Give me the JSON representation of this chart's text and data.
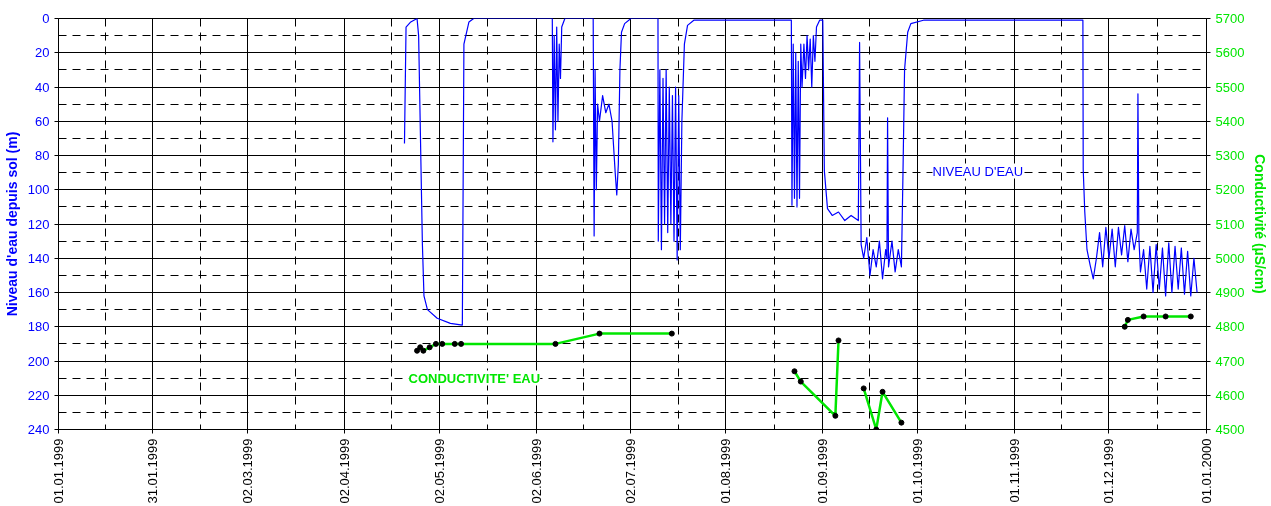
{
  "chart_data": {
    "type": "line",
    "xlabel": null,
    "ylabel": "Niveau d'eau depuis sol (m)",
    "y2label": "Conductivité (µS/cm)",
    "xlim": [
      "1999-01-01",
      "2000-01-01"
    ],
    "xticks": [
      {
        "value": "1999-01-01",
        "label": "01.01.1999"
      },
      {
        "value": "1999-01-31",
        "label": "31.01.1999"
      },
      {
        "value": "1999-03-02",
        "label": "02.03.1999"
      },
      {
        "value": "1999-04-02",
        "label": "02.04.1999"
      },
      {
        "value": "1999-05-02",
        "label": "02.05.1999"
      },
      {
        "value": "1999-06-02",
        "label": "02.06.1999"
      },
      {
        "value": "1999-07-02",
        "label": "02.07.1999"
      },
      {
        "value": "1999-08-01",
        "label": "01.08.1999"
      },
      {
        "value": "1999-09-01",
        "label": "01.09.1999"
      },
      {
        "value": "1999-10-01",
        "label": "01.10.1999"
      },
      {
        "value": "1999-11-01",
        "label": "01.11.1999"
      },
      {
        "value": "1999-12-01",
        "label": "01.12.1999"
      },
      {
        "value": "2000-01-01",
        "label": "01.01.2000"
      }
    ],
    "ylim": [
      240,
      0
    ],
    "yticks": [
      0,
      20,
      40,
      60,
      80,
      100,
      120,
      140,
      160,
      180,
      200,
      220,
      240
    ],
    "y2lim": [
      4500,
      5700
    ],
    "y2ticks": [
      4500,
      4600,
      4700,
      4800,
      4900,
      5000,
      5100,
      5200,
      5300,
      5400,
      5500,
      5600,
      5700
    ],
    "grid": true,
    "series": [
      {
        "name": "NIVEAU D'EAU",
        "color": "#0000ff",
        "marker": "none",
        "x": [
          "1999-04-21",
          "1999-04-21T12:00",
          "1999-04-23",
          "1999-04-25",
          "1999-04-25T12:00",
          "1999-04-26T16:48",
          "1999-04-27T04:48",
          "1999-04-28T07:12",
          "1999-05-01T09:36",
          "1999-05-05T14:24",
          "1999-05-09T09:36",
          "1999-05-09T21:36",
          "1999-05-11T12:00",
          "1999-05-13",
          "1999-06-07",
          "1999-06-07T04:48",
          "1999-06-07T14:24",
          "1999-06-08",
          "1999-06-08T09:36",
          "1999-06-08T19:12",
          "1999-06-09T04:48",
          "1999-06-09T14:24",
          "1999-06-10",
          "1999-06-11",
          "1999-06-20",
          "1999-06-20T07:12",
          "1999-06-20T14:24",
          "1999-06-21",
          "1999-06-21T09:36",
          "1999-06-22",
          "1999-06-23",
          "1999-06-24",
          "1999-06-25",
          "1999-06-26",
          "1999-06-26T12:00",
          "1999-06-27",
          "1999-06-27T12:00",
          "1999-06-28",
          "1999-06-28T12:00",
          "1999-06-29",
          "1999-06-30",
          "1999-07-02",
          "1999-07-10T14:24",
          "1999-07-10T16:48",
          "1999-07-11T04:48",
          "1999-07-11T16:48",
          "1999-07-12T04:48",
          "1999-07-12T16:48",
          "1999-07-13T04:48",
          "1999-07-13T16:48",
          "1999-07-14T04:48",
          "1999-07-14T16:48",
          "1999-07-15T04:48",
          "1999-07-15T16:48",
          "1999-07-16T04:48",
          "1999-07-16T16:48",
          "1999-07-17T04:48",
          "1999-07-17T16:48",
          "1999-07-18T04:48",
          "1999-07-19",
          "1999-07-20",
          "1999-07-22",
          "1999-07-25",
          "1999-08-22",
          "1999-08-22T04:48",
          "1999-08-22T14:24",
          "1999-08-23",
          "1999-08-23T09:36",
          "1999-08-23T19:12",
          "1999-08-24T04:48",
          "1999-08-24T14:24",
          "1999-08-25",
          "1999-08-25T09:36",
          "1999-08-26",
          "1999-08-26T12:00",
          "1999-08-27",
          "1999-08-27T12:00",
          "1999-08-28",
          "1999-08-28T12:00",
          "1999-08-29",
          "1999-08-29T12:00",
          "1999-08-30",
          "1999-08-31",
          "1999-09-01",
          "1999-09-01T12:00",
          "1999-09-02T12:00",
          "1999-09-04",
          "1999-09-06",
          "1999-09-08",
          "1999-09-10",
          "1999-09-12T07:12",
          "1999-09-12T16:48",
          "1999-09-13T04:48",
          "1999-09-14",
          "1999-09-15",
          "1999-09-16",
          "1999-09-17",
          "1999-09-18",
          "1999-09-19",
          "1999-09-20",
          "1999-09-21",
          "1999-09-21T09:36",
          "1999-09-21T14:24",
          "1999-09-21T21:36",
          "1999-09-23",
          "1999-09-24",
          "1999-09-25",
          "1999-09-26",
          "1999-09-26T12:00",
          "1999-09-27",
          "1999-09-28",
          "1999-09-29",
          "1999-10-03",
          "1999-11-22T16:48",
          "1999-11-22T19:12",
          "1999-11-23T07:12",
          "1999-11-24",
          "1999-11-25",
          "1999-11-26",
          "1999-11-27",
          "1999-11-28",
          "1999-11-29",
          "1999-11-30",
          "1999-12-01",
          "1999-12-02",
          "1999-12-03",
          "1999-12-04",
          "1999-12-05",
          "1999-12-06",
          "1999-12-07",
          "1999-12-08",
          "1999-12-09",
          "1999-12-10",
          "1999-12-10T04:48",
          "1999-12-10T12:00",
          "1999-12-11",
          "1999-12-12",
          "1999-12-13",
          "1999-12-14",
          "1999-12-15",
          "1999-12-16",
          "1999-12-17",
          "1999-12-18",
          "1999-12-19",
          "1999-12-20",
          "1999-12-21",
          "1999-12-22",
          "1999-12-23",
          "1999-12-24",
          "1999-12-25",
          "1999-12-26",
          "1999-12-27",
          "1999-12-28",
          "1999-12-29"
        ],
        "values": [
          73,
          5,
          2,
          0,
          10,
          132,
          162,
          170,
          175,
          178,
          179,
          15,
          2,
          0,
          0,
          72,
          10,
          65,
          5,
          60,
          15,
          35,
          5,
          0,
          0,
          127,
          30,
          100,
          50,
          60,
          45,
          55,
          50,
          60,
          75,
          90,
          103,
          85,
          30,
          8,
          3,
          0,
          0,
          130,
          30,
          135,
          35,
          120,
          30,
          125,
          40,
          120,
          45,
          130,
          40,
          141,
          45,
          135,
          60,
          15,
          4,
          1,
          1,
          1,
          109,
          15,
          105,
          20,
          110,
          25,
          105,
          15,
          40,
          15,
          35,
          10,
          30,
          12,
          40,
          10,
          25,
          5,
          1,
          1,
          89,
          111,
          115,
          113,
          118,
          115,
          118,
          14,
          132,
          140,
          128,
          150,
          135,
          145,
          130,
          152,
          135,
          140,
          58,
          145,
          130,
          148,
          135,
          145,
          90,
          30,
          8,
          3,
          1,
          1,
          88,
          113,
          135,
          144,
          152,
          140,
          125,
          145,
          122,
          140,
          123,
          145,
          122,
          138,
          121,
          142,
          123,
          135,
          125,
          44,
          128,
          148,
          135,
          158,
          133,
          160,
          132,
          158,
          134,
          162,
          131,
          160,
          133,
          158,
          134,
          161,
          136,
          162,
          140,
          160
        ]
      },
      {
        "name": "CONDUCTIVITE' EAU",
        "color": "#00e600",
        "axis": "y2",
        "marker": "circle",
        "x": [
          "1999-04-25",
          "1999-04-26",
          "1999-04-27",
          "1999-04-29",
          "1999-05-01",
          "1999-05-03",
          "1999-05-07",
          "1999-05-09",
          "1999-06-08",
          "1999-06-22",
          "1999-07-15",
          "1999-08-01",
          "1999-08-23",
          "1999-08-25",
          "1999-09-05",
          "1999-09-06",
          "1999-09-12",
          "1999-09-14",
          "1999-09-18",
          "1999-09-20",
          "1999-09-26",
          "1999-11-01",
          "1999-12-06",
          "1999-12-07",
          "1999-12-12",
          "1999-12-19",
          "1999-12-27"
        ],
        "values": [
          4730,
          4740,
          4730,
          4740,
          4750,
          4750,
          4750,
          4750,
          4750,
          4780,
          4780,
          null,
          4670,
          4640,
          4540,
          4760,
          null,
          4620,
          4500,
          4610,
          4520,
          null,
          4800,
          4820,
          4830,
          4830,
          4830
        ]
      }
    ]
  }
}
